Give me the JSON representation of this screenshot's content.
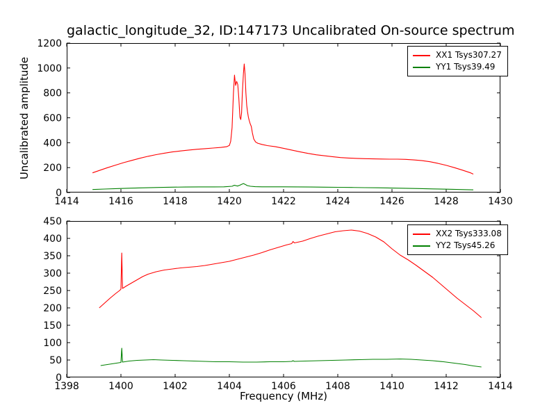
{
  "figure": {
    "title": "galactic_longitude_32, ID:147173 Uncalibrated On-source spectrum",
    "ylabel": "Uncalibrated amplitude",
    "xlabel": "Frequency (MHz)",
    "background_color": "#ffffff",
    "frame_color": "#000000"
  },
  "chart_data": [
    {
      "type": "line",
      "panel": "top",
      "xlim": [
        1414,
        1430
      ],
      "ylim": [
        0,
        1200
      ],
      "xticks": [
        1414,
        1416,
        1418,
        1420,
        1422,
        1424,
        1426,
        1428,
        1430
      ],
      "yticks": [
        0,
        200,
        400,
        600,
        800,
        1000,
        1200
      ],
      "grid": false,
      "legend_position": "upper right",
      "series": [
        {
          "name": "XX1",
          "label": "XX1 Tsys307.27",
          "color": "#ff0000",
          "points": [
            [
              1414.95,
              158
            ],
            [
              1415.2,
              177
            ],
            [
              1415.5,
              199
            ],
            [
              1415.8,
              220
            ],
            [
              1416.1,
              240
            ],
            [
              1416.4,
              258
            ],
            [
              1416.7,
              275
            ],
            [
              1417.0,
              291
            ],
            [
              1417.3,
              304
            ],
            [
              1417.6,
              316
            ],
            [
              1417.9,
              326
            ],
            [
              1418.2,
              334
            ],
            [
              1418.5,
              341
            ],
            [
              1418.8,
              347
            ],
            [
              1419.1,
              352
            ],
            [
              1419.4,
              357
            ],
            [
              1419.7,
              362
            ],
            [
              1419.9,
              368
            ],
            [
              1420.0,
              378
            ],
            [
              1420.05,
              410
            ],
            [
              1420.1,
              520
            ],
            [
              1420.15,
              800
            ],
            [
              1420.19,
              943
            ],
            [
              1420.23,
              860
            ],
            [
              1420.27,
              893
            ],
            [
              1420.31,
              868
            ],
            [
              1420.35,
              760
            ],
            [
              1420.39,
              605
            ],
            [
              1420.42,
              586
            ],
            [
              1420.45,
              640
            ],
            [
              1420.48,
              800
            ],
            [
              1420.52,
              960
            ],
            [
              1420.55,
              1032
            ],
            [
              1420.58,
              950
            ],
            [
              1420.61,
              800
            ],
            [
              1420.64,
              700
            ],
            [
              1420.67,
              650
            ],
            [
              1420.7,
              608
            ],
            [
              1420.73,
              580
            ],
            [
              1420.77,
              552
            ],
            [
              1420.81,
              530
            ],
            [
              1420.85,
              480
            ],
            [
              1420.9,
              430
            ],
            [
              1420.97,
              406
            ],
            [
              1421.05,
              396
            ],
            [
              1421.2,
              386
            ],
            [
              1421.4,
              377
            ],
            [
              1421.7,
              368
            ],
            [
              1422.0,
              355
            ],
            [
              1422.3,
              341
            ],
            [
              1422.6,
              327
            ],
            [
              1422.9,
              314
            ],
            [
              1423.2,
              303
            ],
            [
              1423.5,
              295
            ],
            [
              1423.8,
              288
            ],
            [
              1424.1,
              281
            ],
            [
              1424.4,
              277
            ],
            [
              1424.7,
              274
            ],
            [
              1425.0,
              272
            ],
            [
              1425.3,
              270
            ],
            [
              1425.6,
              269
            ],
            [
              1425.9,
              268
            ],
            [
              1426.2,
              268
            ],
            [
              1426.5,
              266
            ],
            [
              1426.8,
              262
            ],
            [
              1427.1,
              256
            ],
            [
              1427.4,
              247
            ],
            [
              1427.7,
              234
            ],
            [
              1428.0,
              218
            ],
            [
              1428.3,
              200
            ],
            [
              1428.6,
              180
            ],
            [
              1428.9,
              158
            ],
            [
              1429.0,
              148
            ]
          ]
        },
        {
          "name": "YY1",
          "label": "YY1 Tsys39.49",
          "color": "#008000",
          "points": [
            [
              1414.95,
              24
            ],
            [
              1415.4,
              28
            ],
            [
              1415.9,
              32
            ],
            [
              1416.4,
              35
            ],
            [
              1416.9,
              38
            ],
            [
              1417.4,
              41
            ],
            [
              1417.9,
              43
            ],
            [
              1418.4,
              44
            ],
            [
              1418.9,
              45
            ],
            [
              1419.4,
              45
            ],
            [
              1419.8,
              46
            ],
            [
              1420.1,
              50
            ],
            [
              1420.18,
              58
            ],
            [
              1420.24,
              55
            ],
            [
              1420.3,
              52
            ],
            [
              1420.38,
              58
            ],
            [
              1420.45,
              66
            ],
            [
              1420.52,
              72
            ],
            [
              1420.58,
              66
            ],
            [
              1420.66,
              56
            ],
            [
              1420.78,
              50
            ],
            [
              1420.95,
              47
            ],
            [
              1421.2,
              46
            ],
            [
              1421.6,
              46
            ],
            [
              1422.0,
              46
            ],
            [
              1422.5,
              45
            ],
            [
              1423.0,
              44
            ],
            [
              1423.5,
              43
            ],
            [
              1424.0,
              42
            ],
            [
              1424.5,
              41
            ],
            [
              1425.0,
              39
            ],
            [
              1425.5,
              38
            ],
            [
              1426.0,
              36
            ],
            [
              1426.5,
              34
            ],
            [
              1427.0,
              32
            ],
            [
              1427.5,
              29
            ],
            [
              1428.0,
              27
            ],
            [
              1428.5,
              24
            ],
            [
              1429.0,
              21
            ]
          ]
        }
      ]
    },
    {
      "type": "line",
      "panel": "bottom",
      "xlim": [
        1398,
        1414
      ],
      "ylim": [
        0,
        450
      ],
      "xticks": [
        1398,
        1400,
        1402,
        1404,
        1406,
        1408,
        1410,
        1412,
        1414
      ],
      "yticks": [
        0,
        50,
        100,
        150,
        200,
        250,
        300,
        350,
        400,
        450
      ],
      "grid": false,
      "legend_position": "upper right",
      "series": [
        {
          "name": "XX2",
          "label": "XX2 Tsys333.08",
          "color": "#ff0000",
          "points": [
            [
              1399.2,
              200
            ],
            [
              1399.4,
              214
            ],
            [
              1399.6,
              228
            ],
            [
              1399.8,
              241
            ],
            [
              1399.95,
              250
            ],
            [
              1400.0,
              254
            ],
            [
              1400.03,
              358
            ],
            [
              1400.06,
              256
            ],
            [
              1400.2,
              263
            ],
            [
              1400.4,
              272
            ],
            [
              1400.6,
              281
            ],
            [
              1400.8,
              290
            ],
            [
              1401.0,
              297
            ],
            [
              1401.3,
              304
            ],
            [
              1401.6,
              309
            ],
            [
              1401.9,
              312
            ],
            [
              1402.2,
              315
            ],
            [
              1402.5,
              317
            ],
            [
              1402.8,
              319
            ],
            [
              1403.1,
              322
            ],
            [
              1403.4,
              326
            ],
            [
              1403.7,
              330
            ],
            [
              1404.0,
              334
            ],
            [
              1404.3,
              340
            ],
            [
              1404.6,
              346
            ],
            [
              1404.9,
              352
            ],
            [
              1405.2,
              359
            ],
            [
              1405.5,
              367
            ],
            [
              1405.8,
              374
            ],
            [
              1406.1,
              381
            ],
            [
              1406.3,
              385
            ],
            [
              1406.35,
              391
            ],
            [
              1406.4,
              387
            ],
            [
              1406.7,
              392
            ],
            [
              1407.0,
              400
            ],
            [
              1407.3,
              407
            ],
            [
              1407.6,
              413
            ],
            [
              1407.9,
              419
            ],
            [
              1408.2,
              422
            ],
            [
              1408.5,
              424
            ],
            [
              1408.8,
              421
            ],
            [
              1409.1,
              414
            ],
            [
              1409.4,
              404
            ],
            [
              1409.7,
              390
            ],
            [
              1410.0,
              370
            ],
            [
              1410.3,
              352
            ],
            [
              1410.6,
              338
            ],
            [
              1410.9,
              322
            ],
            [
              1411.2,
              305
            ],
            [
              1411.5,
              288
            ],
            [
              1411.8,
              268
            ],
            [
              1412.1,
              248
            ],
            [
              1412.4,
              228
            ],
            [
              1412.7,
              210
            ],
            [
              1413.0,
              192
            ],
            [
              1413.15,
              182
            ],
            [
              1413.3,
              172
            ]
          ]
        },
        {
          "name": "YY2",
          "label": "YY2 Tsys45.26",
          "color": "#008000",
          "points": [
            [
              1399.25,
              34
            ],
            [
              1399.5,
              37
            ],
            [
              1399.75,
              40
            ],
            [
              1400.0,
              43
            ],
            [
              1400.03,
              84
            ],
            [
              1400.06,
              44
            ],
            [
              1400.3,
              47
            ],
            [
              1400.6,
              49
            ],
            [
              1400.9,
              50
            ],
            [
              1401.2,
              51
            ],
            [
              1401.5,
              50
            ],
            [
              1401.9,
              49
            ],
            [
              1402.3,
              48
            ],
            [
              1402.7,
              47
            ],
            [
              1403.1,
              46
            ],
            [
              1403.5,
              45
            ],
            [
              1404.0,
              45
            ],
            [
              1404.5,
              44
            ],
            [
              1405.0,
              44
            ],
            [
              1405.5,
              45
            ],
            [
              1406.0,
              45
            ],
            [
              1406.3,
              46
            ],
            [
              1406.35,
              48
            ],
            [
              1406.4,
              46
            ],
            [
              1406.8,
              47
            ],
            [
              1407.3,
              48
            ],
            [
              1407.8,
              49
            ],
            [
              1408.3,
              50
            ],
            [
              1408.8,
              51
            ],
            [
              1409.3,
              52
            ],
            [
              1409.8,
              52
            ],
            [
              1410.3,
              53
            ],
            [
              1410.7,
              52
            ],
            [
              1411.1,
              50
            ],
            [
              1411.5,
              48
            ],
            [
              1411.9,
              45
            ],
            [
              1412.3,
              41
            ],
            [
              1412.7,
              37
            ],
            [
              1413.0,
              33
            ],
            [
              1413.3,
              30
            ]
          ]
        }
      ]
    }
  ]
}
